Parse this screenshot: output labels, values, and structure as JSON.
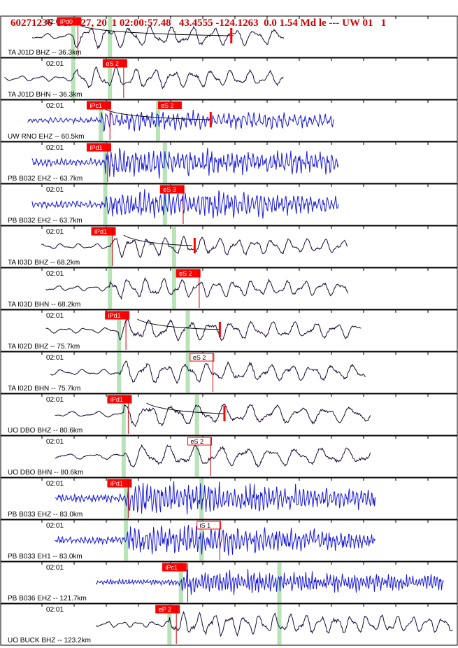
{
  "header": {
    "event_id": "60271236",
    "datetime": "May 27, 2011 02:00:57.48",
    "lat_lon": "43.4555 -124.1263",
    "depth_mag": "0.0 1.54 Md le ---",
    "network_flag": "UW 01",
    "page": "1"
  },
  "colors": {
    "title": "#d40000",
    "pick_flag": "#ff0000",
    "pick_line": "#cc0000",
    "phase_window": "#b7e3b7",
    "short_period_trace": "#1a1adc",
    "broadband_trace": "#1a0a3a",
    "coda_curve": "#000000",
    "grid": "#000000"
  },
  "time_label": "02:01",
  "traces": [
    {
      "label": "TA J01D BHZ -- 36.3km",
      "pick": "iPd0",
      "type": "bb",
      "start": 0.07,
      "end": 0.62,
      "flag": 0.125,
      "green": [
        0.16,
        0.24
      ],
      "pickline": 0.17,
      "amp": 0.85,
      "freq": 22,
      "coda": [
        0.175,
        0.51
      ],
      "spike": 0.505
    },
    {
      "label": "TA J01D BHN -- 36.3km",
      "pick": "eS 2",
      "type": "bb",
      "start": 0.01,
      "end": 0.62,
      "flag": 0.225,
      "green": [
        0.16,
        0.24
      ],
      "pickline": 0.27,
      "amp": 0.8,
      "freq": 24
    },
    {
      "label": "UW RNO EHZ -- 60.5km",
      "pick": "iPc1 eS 2",
      "type": "sp",
      "start": 0.06,
      "end": 0.73,
      "flag": 0.19,
      "flag2": 0.345,
      "green": [
        0.22,
        0.345
      ],
      "pickline": 0.24,
      "amp": 0.6,
      "freq": 90,
      "coda": [
        0.23,
        0.46
      ],
      "spike": 0.46
    },
    {
      "label": "PB B032 EHZ -- 63.7km",
      "pick": "iPd1",
      "type": "sp",
      "start": 0.07,
      "end": 0.74,
      "flag": 0.19,
      "green": [
        0.23,
        0.36
      ],
      "pickline": 0.235,
      "amp": 0.9,
      "freq": 110
    },
    {
      "label": "PB B032 EH2 -- 63.7km",
      "pick": "eS 3",
      "type": "sp",
      "start": 0.07,
      "end": 0.74,
      "flag": 0.35,
      "green": [
        0.23,
        0.36
      ],
      "pickline": 0.4,
      "amp": 0.9,
      "freq": 110
    },
    {
      "label": "TA I03D BHZ -- 68.2km",
      "pick": "iPd1",
      "type": "bb",
      "start": 0.09,
      "end": 0.76,
      "flag": 0.2,
      "green": [
        0.24,
        0.38
      ],
      "pickline": 0.245,
      "amp": 0.75,
      "freq": 26,
      "coda": [
        0.27,
        0.42
      ],
      "spike": 0.425
    },
    {
      "label": "TA I03D BHN -- 68.2km",
      "pick": "eS 2",
      "type": "bb",
      "start": 0.1,
      "end": 0.76,
      "flag": 0.385,
      "green": [
        0.24,
        0.38
      ],
      "pickline": 0.435,
      "amp": 0.75,
      "freq": 26
    },
    {
      "label": "TA I02D BHZ -- 75.7km",
      "pick": "iPd1",
      "type": "bb",
      "start": 0.1,
      "end": 0.79,
      "flag": 0.23,
      "green": [
        0.26,
        0.41
      ],
      "pickline": 0.275,
      "amp": 0.8,
      "freq": 22,
      "coda": [
        0.3,
        0.48
      ],
      "spike": 0.48
    },
    {
      "label": "TA I02D BHN -- 75.7km",
      "pick": "eS 2",
      "type": "bb",
      "start": 0.11,
      "end": 0.8,
      "flag": 0.415,
      "green": [
        0.26,
        0.41
      ],
      "pickline": 0.465,
      "amp": 0.8,
      "freq": 22,
      "pickstyle": "outline"
    },
    {
      "label": "UO DBO BHZ -- 80.6km",
      "pick": "iPd1",
      "type": "bb",
      "start": 0.12,
      "end": 0.81,
      "flag": 0.235,
      "green": [
        0.27,
        0.43
      ],
      "pickline": 0.28,
      "amp": 0.85,
      "freq": 18,
      "coda": [
        0.32,
        0.49
      ],
      "spike": 0.49
    },
    {
      "label": "UO DBO BHN -- 80.6km",
      "pick": "eS 2",
      "type": "bb",
      "start": 0.12,
      "end": 0.81,
      "flag": 0.41,
      "green": [
        0.27,
        0.43
      ],
      "pickline": 0.46,
      "amp": 0.85,
      "freq": 18,
      "pickstyle": "outline"
    },
    {
      "label": "PB B033 EHZ -- 83.0km",
      "pick": "iPd1",
      "type": "sp",
      "start": 0.12,
      "end": 0.82,
      "flag": 0.235,
      "green": [
        0.275,
        0.44
      ],
      "pickline": 0.28,
      "amp": 0.95,
      "freq": 120
    },
    {
      "label": "PB B033 EH1 -- 83.0km",
      "pick": "iS 1",
      "type": "sp",
      "start": 0.12,
      "end": 0.82,
      "flag": 0.43,
      "green": [
        0.275,
        0.44
      ],
      "pickline": 0.48,
      "amp": 0.9,
      "freq": 120,
      "pickstyle": "outline"
    },
    {
      "label": "PB B036 EHZ -- 121.7km",
      "pick": "iPc1",
      "type": "sp",
      "start": 0.21,
      "end": 0.97,
      "flag": 0.355,
      "green": [
        0.395,
        0.61
      ],
      "pickline": 0.41,
      "amp": 0.7,
      "freq": 150
    },
    {
      "label": "UO BUCK BHZ -- 123.2km",
      "pick": "eP 2",
      "type": "bb",
      "start": 0.21,
      "end": 0.99,
      "flag": 0.34,
      "green": [
        0.37,
        0.61
      ],
      "pickline": 0.385,
      "amp": 0.85,
      "freq": 30
    }
  ]
}
